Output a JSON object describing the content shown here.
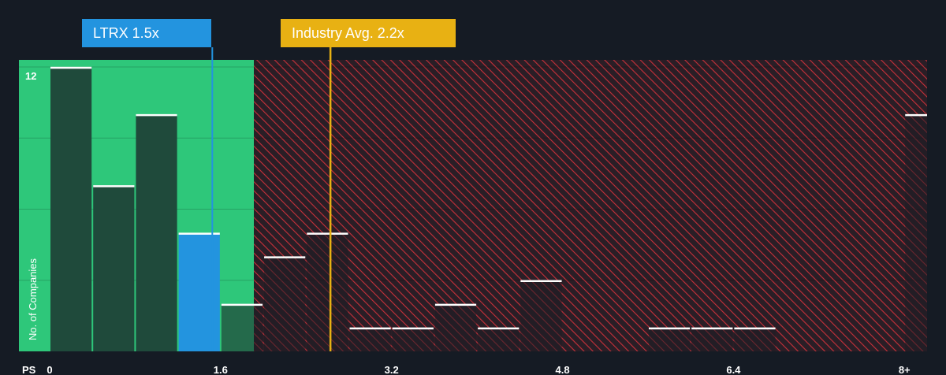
{
  "chart_data": {
    "type": "bar",
    "title": "",
    "xlabel": "PS",
    "ylabel": "No. of Companies",
    "x_tick_labels": [
      {
        "value": 0,
        "label": "0"
      },
      {
        "value": 1.6,
        "label": "1.6"
      },
      {
        "value": 3.2,
        "label": "3.2"
      },
      {
        "value": 4.8,
        "label": "4.8"
      },
      {
        "value": 6.4,
        "label": "6.4"
      },
      {
        "value": 8.0,
        "label": "8+"
      }
    ],
    "y_tick_labels": [
      {
        "value": 12,
        "label": "12"
      }
    ],
    "xlim": [
      0,
      8.1
    ],
    "ylim": [
      0,
      12.3
    ],
    "bin_width": 0.4,
    "bins": [
      {
        "x0": 0.0,
        "count": 12
      },
      {
        "x0": 0.4,
        "count": 7
      },
      {
        "x0": 0.8,
        "count": 10
      },
      {
        "x0": 1.2,
        "count": 5
      },
      {
        "x0": 1.6,
        "count": 2
      },
      {
        "x0": 2.0,
        "count": 4
      },
      {
        "x0": 2.4,
        "count": 5
      },
      {
        "x0": 2.8,
        "count": 1
      },
      {
        "x0": 3.2,
        "count": 1
      },
      {
        "x0": 3.6,
        "count": 2
      },
      {
        "x0": 4.0,
        "count": 1
      },
      {
        "x0": 4.4,
        "count": 3
      },
      {
        "x0": 4.8,
        "count": 0
      },
      {
        "x0": 5.2,
        "count": 0
      },
      {
        "x0": 5.6,
        "count": 1
      },
      {
        "x0": 6.0,
        "count": 1
      },
      {
        "x0": 6.4,
        "count": 1
      },
      {
        "x0": 6.8,
        "count": 0
      },
      {
        "x0": 7.2,
        "count": 0
      },
      {
        "x0": 7.6,
        "count": 0
      },
      {
        "x0": 8.0,
        "count": 10
      }
    ],
    "company": {
      "ticker": "LTRX",
      "value": 1.5,
      "label": "LTRX 1.5x",
      "color": "#2394df"
    },
    "industry_avg": {
      "value": 2.2,
      "label": "Industry Avg. 2.2x",
      "color": "#e8b113"
    },
    "fair_region_color": "#2ec77a",
    "overvalued_region_color": "#c8313a",
    "grid": true
  }
}
